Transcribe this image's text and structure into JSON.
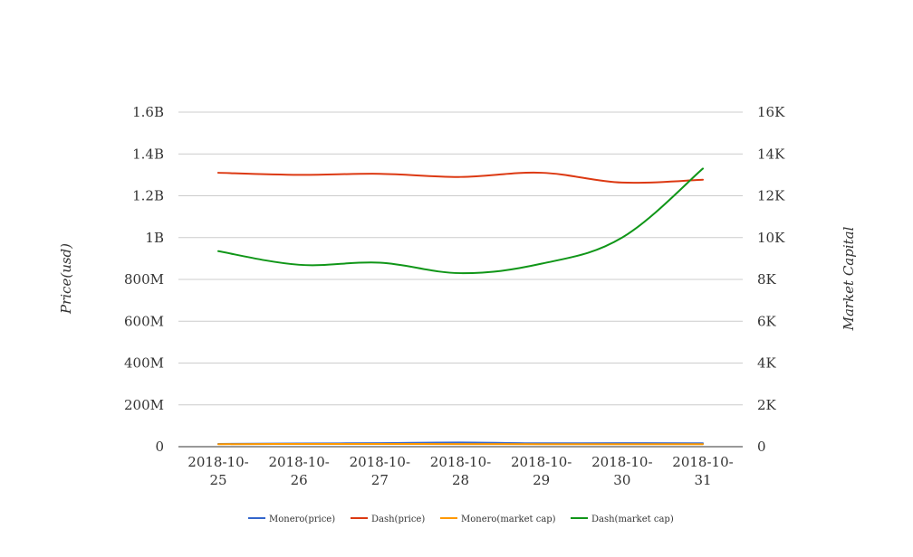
{
  "chart_data": {
    "type": "line",
    "categories": [
      "2018-10-25",
      "2018-10-26",
      "2018-10-27",
      "2018-10-28",
      "2018-10-29",
      "2018-10-30",
      "2018-10-31"
    ],
    "y_left": {
      "label": "Price(usd)",
      "ylim": [
        0,
        1600000000
      ],
      "ticks": [
        {
          "value": 0,
          "label": "0"
        },
        {
          "value": 200000000,
          "label": "200M"
        },
        {
          "value": 400000000,
          "label": "400M"
        },
        {
          "value": 600000000,
          "label": "600M"
        },
        {
          "value": 800000000,
          "label": "800M"
        },
        {
          "value": 1000000000,
          "label": "1B"
        },
        {
          "value": 1200000000,
          "label": "1.2B"
        },
        {
          "value": 1400000000,
          "label": "1.4B"
        },
        {
          "value": 1600000000,
          "label": "1.6B"
        }
      ]
    },
    "y_right": {
      "label": "Market Capital",
      "ylim": [
        0,
        16000
      ],
      "ticks": [
        {
          "value": 0,
          "label": "0"
        },
        {
          "value": 2000,
          "label": "2K"
        },
        {
          "value": 4000,
          "label": "4K"
        },
        {
          "value": 6000,
          "label": "6K"
        },
        {
          "value": 8000,
          "label": "8K"
        },
        {
          "value": 10000,
          "label": "10K"
        },
        {
          "value": 12000,
          "label": "12K"
        },
        {
          "value": 14000,
          "label": "14K"
        },
        {
          "value": 16000,
          "label": "16K"
        }
      ]
    },
    "series": [
      {
        "name": "Monero(price)",
        "color": "#3366cc",
        "axis": "left",
        "values": [
          13000000,
          15000000,
          17000000,
          20000000,
          16000000,
          17000000,
          16000000
        ]
      },
      {
        "name": "Dash(price)",
        "color": "#dc3912",
        "axis": "left",
        "values": [
          1310000000,
          1300000000,
          1305000000,
          1290000000,
          1310000000,
          1263000000,
          1277000000
        ]
      },
      {
        "name": "Monero(market cap)",
        "color": "#ff9900",
        "axis": "right",
        "values": [
          120,
          130,
          130,
          125,
          120,
          120,
          120
        ]
      },
      {
        "name": "Dash(market cap)",
        "color": "#109618",
        "axis": "right",
        "values": [
          9350,
          8700,
          8800,
          8300,
          8750,
          10000,
          13300
        ]
      }
    ],
    "grid": true,
    "legend_position": "bottom"
  }
}
